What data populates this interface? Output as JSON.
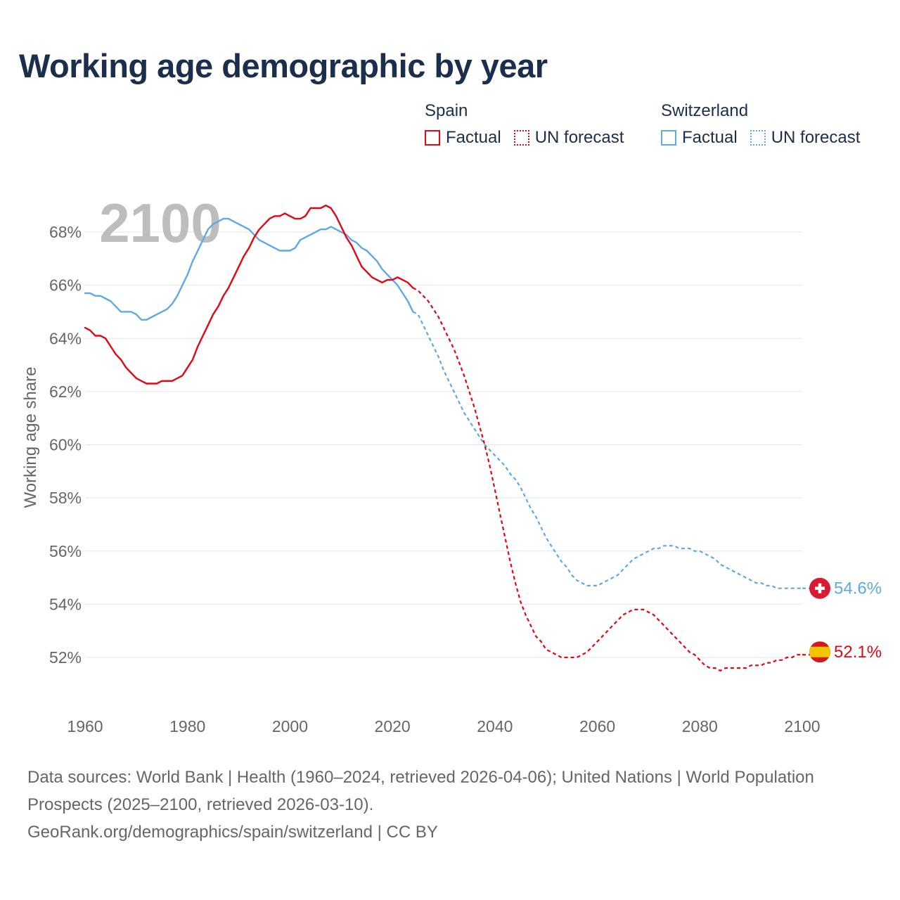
{
  "title": "Working age demographic by year",
  "legend": {
    "spain": {
      "name": "Spain",
      "factual": "Factual",
      "forecast": "UN forecast",
      "color": "#e30613"
    },
    "switzerland": {
      "name": "Switzerland",
      "factual": "Factual",
      "forecast": "UN forecast",
      "color": "#5ea9e6"
    }
  },
  "footer": {
    "sources": "Data sources: World Bank | Health (1960–2024, retrieved 2026-04-06); United Nations | World Population Prospects (2025–2100, retrieved 2026-03-10).",
    "link": "GeoRank.org/demographics/spain/switzerland | CC BY"
  },
  "chart_data": {
    "type": "line",
    "title": "Working age demographic by year",
    "year_watermark": "2100",
    "xlabel": "",
    "ylabel": "Working age share",
    "xlim": [
      1960,
      2100
    ],
    "ylim": [
      50.2,
      69.5
    ],
    "x_ticks": [
      1960,
      1980,
      2000,
      2020,
      2040,
      2060,
      2080,
      2100
    ],
    "y_ticks": [
      52,
      54,
      56,
      58,
      60,
      62,
      64,
      66,
      68
    ],
    "y_tick_labels": [
      "52%",
      "54%",
      "56%",
      "58%",
      "60%",
      "62%",
      "64%",
      "66%",
      "68%"
    ],
    "grid": true,
    "end_labels": {
      "spain": "52.1%",
      "switzerland": "54.6%"
    },
    "series": [
      {
        "name": "Spain",
        "color": "#e30613",
        "factual": {
          "x": [
            1960,
            1961,
            1962,
            1963,
            1964,
            1965,
            1966,
            1967,
            1968,
            1969,
            1970,
            1971,
            1972,
            1973,
            1974,
            1975,
            1976,
            1977,
            1978,
            1979,
            1980,
            1981,
            1982,
            1983,
            1984,
            1985,
            1986,
            1987,
            1988,
            1989,
            1990,
            1991,
            1992,
            1993,
            1994,
            1995,
            1996,
            1997,
            1998,
            1999,
            2000,
            2001,
            2002,
            2003,
            2004,
            2005,
            2006,
            2007,
            2008,
            2009,
            2010,
            2011,
            2012,
            2013,
            2014,
            2015,
            2016,
            2017,
            2018,
            2019,
            2020,
            2021,
            2022,
            2023,
            2024
          ],
          "y": [
            64.4,
            64.3,
            64.1,
            64.1,
            64.0,
            63.7,
            63.4,
            63.2,
            62.9,
            62.7,
            62.5,
            62.4,
            62.3,
            62.3,
            62.3,
            62.4,
            62.4,
            62.4,
            62.5,
            62.6,
            62.9,
            63.2,
            63.7,
            64.1,
            64.5,
            64.9,
            65.2,
            65.6,
            65.9,
            66.3,
            66.7,
            67.1,
            67.4,
            67.8,
            68.1,
            68.3,
            68.5,
            68.6,
            68.6,
            68.7,
            68.6,
            68.5,
            68.5,
            68.6,
            68.9,
            68.9,
            68.9,
            69.0,
            68.9,
            68.6,
            68.2,
            67.8,
            67.5,
            67.1,
            66.7,
            66.5,
            66.3,
            66.2,
            66.1,
            66.2,
            66.2,
            66.3,
            66.2,
            66.1,
            65.9
          ]
        },
        "forecast": {
          "x": [
            2024,
            2025,
            2026,
            2027,
            2028,
            2029,
            2030,
            2031,
            2032,
            2033,
            2034,
            2035,
            2036,
            2037,
            2038,
            2039,
            2040,
            2041,
            2042,
            2043,
            2044,
            2045,
            2046,
            2047,
            2048,
            2049,
            2050,
            2051,
            2052,
            2053,
            2054,
            2055,
            2056,
            2057,
            2058,
            2059,
            2060,
            2061,
            2062,
            2063,
            2064,
            2065,
            2066,
            2067,
            2068,
            2069,
            2070,
            2071,
            2072,
            2073,
            2074,
            2075,
            2076,
            2077,
            2078,
            2079,
            2080,
            2081,
            2082,
            2083,
            2084,
            2085,
            2086,
            2087,
            2088,
            2089,
            2090,
            2091,
            2092,
            2093,
            2094,
            2095,
            2096,
            2097,
            2098,
            2099,
            2100
          ],
          "y": [
            65.9,
            65.8,
            65.6,
            65.4,
            65.1,
            64.8,
            64.4,
            64.0,
            63.6,
            63.1,
            62.6,
            62.0,
            61.4,
            60.7,
            60.0,
            59.2,
            58.3,
            57.4,
            56.5,
            55.6,
            54.8,
            54.1,
            53.6,
            53.2,
            52.8,
            52.6,
            52.3,
            52.2,
            52.1,
            52.0,
            52.0,
            52.0,
            52.0,
            52.1,
            52.2,
            52.4,
            52.6,
            52.8,
            53.0,
            53.2,
            53.4,
            53.6,
            53.7,
            53.8,
            53.8,
            53.8,
            53.7,
            53.6,
            53.4,
            53.2,
            53.0,
            52.8,
            52.6,
            52.4,
            52.2,
            52.1,
            51.9,
            51.7,
            51.6,
            51.6,
            51.5,
            51.6,
            51.6,
            51.6,
            51.6,
            51.6,
            51.7,
            51.7,
            51.7,
            51.8,
            51.8,
            51.9,
            51.9,
            52.0,
            52.0,
            52.1,
            52.1
          ]
        }
      },
      {
        "name": "Switzerland",
        "color": "#5ea9e6",
        "factual": {
          "x": [
            1960,
            1961,
            1962,
            1963,
            1964,
            1965,
            1966,
            1967,
            1968,
            1969,
            1970,
            1971,
            1972,
            1973,
            1974,
            1975,
            1976,
            1977,
            1978,
            1979,
            1980,
            1981,
            1982,
            1983,
            1984,
            1985,
            1986,
            1987,
            1988,
            1989,
            1990,
            1991,
            1992,
            1993,
            1994,
            1995,
            1996,
            1997,
            1998,
            1999,
            2000,
            2001,
            2002,
            2003,
            2004,
            2005,
            2006,
            2007,
            2008,
            2009,
            2010,
            2011,
            2012,
            2013,
            2014,
            2015,
            2016,
            2017,
            2018,
            2019,
            2020,
            2021,
            2022,
            2023,
            2024
          ],
          "y": [
            65.7,
            65.7,
            65.6,
            65.6,
            65.5,
            65.4,
            65.2,
            65.0,
            65.0,
            65.0,
            64.9,
            64.7,
            64.7,
            64.8,
            64.9,
            65.0,
            65.1,
            65.3,
            65.6,
            66.0,
            66.4,
            66.9,
            67.3,
            67.7,
            68.1,
            68.3,
            68.4,
            68.5,
            68.5,
            68.4,
            68.3,
            68.2,
            68.1,
            67.9,
            67.7,
            67.6,
            67.5,
            67.4,
            67.3,
            67.3,
            67.3,
            67.4,
            67.7,
            67.8,
            67.9,
            68.0,
            68.1,
            68.1,
            68.2,
            68.1,
            68.0,
            67.9,
            67.7,
            67.6,
            67.4,
            67.3,
            67.1,
            66.9,
            66.6,
            66.4,
            66.2,
            66.0,
            65.7,
            65.4,
            65.0
          ]
        },
        "forecast": {
          "x": [
            2024,
            2025,
            2026,
            2027,
            2028,
            2029,
            2030,
            2031,
            2032,
            2033,
            2034,
            2035,
            2036,
            2037,
            2038,
            2039,
            2040,
            2041,
            2042,
            2043,
            2044,
            2045,
            2046,
            2047,
            2048,
            2049,
            2050,
            2051,
            2052,
            2053,
            2054,
            2055,
            2056,
            2057,
            2058,
            2059,
            2060,
            2061,
            2062,
            2063,
            2064,
            2065,
            2066,
            2067,
            2068,
            2069,
            2070,
            2071,
            2072,
            2073,
            2074,
            2075,
            2076,
            2077,
            2078,
            2079,
            2080,
            2081,
            2082,
            2083,
            2084,
            2085,
            2086,
            2087,
            2088,
            2089,
            2090,
            2091,
            2092,
            2093,
            2094,
            2095,
            2096,
            2097,
            2098,
            2099,
            2100
          ],
          "y": [
            65.0,
            64.9,
            64.5,
            64.1,
            63.7,
            63.3,
            62.8,
            62.4,
            62.0,
            61.6,
            61.2,
            60.9,
            60.6,
            60.3,
            60.0,
            59.8,
            59.6,
            59.4,
            59.2,
            58.9,
            58.7,
            58.4,
            58.0,
            57.6,
            57.3,
            56.9,
            56.5,
            56.2,
            55.9,
            55.6,
            55.4,
            55.1,
            54.9,
            54.8,
            54.7,
            54.7,
            54.7,
            54.8,
            54.9,
            55.0,
            55.1,
            55.3,
            55.5,
            55.7,
            55.8,
            55.9,
            56.0,
            56.1,
            56.1,
            56.2,
            56.2,
            56.2,
            56.1,
            56.1,
            56.1,
            56.0,
            56.0,
            55.9,
            55.8,
            55.7,
            55.5,
            55.4,
            55.3,
            55.2,
            55.1,
            55.0,
            54.9,
            54.8,
            54.8,
            54.7,
            54.7,
            54.6,
            54.6,
            54.6,
            54.6,
            54.6,
            54.6
          ]
        }
      }
    ]
  }
}
